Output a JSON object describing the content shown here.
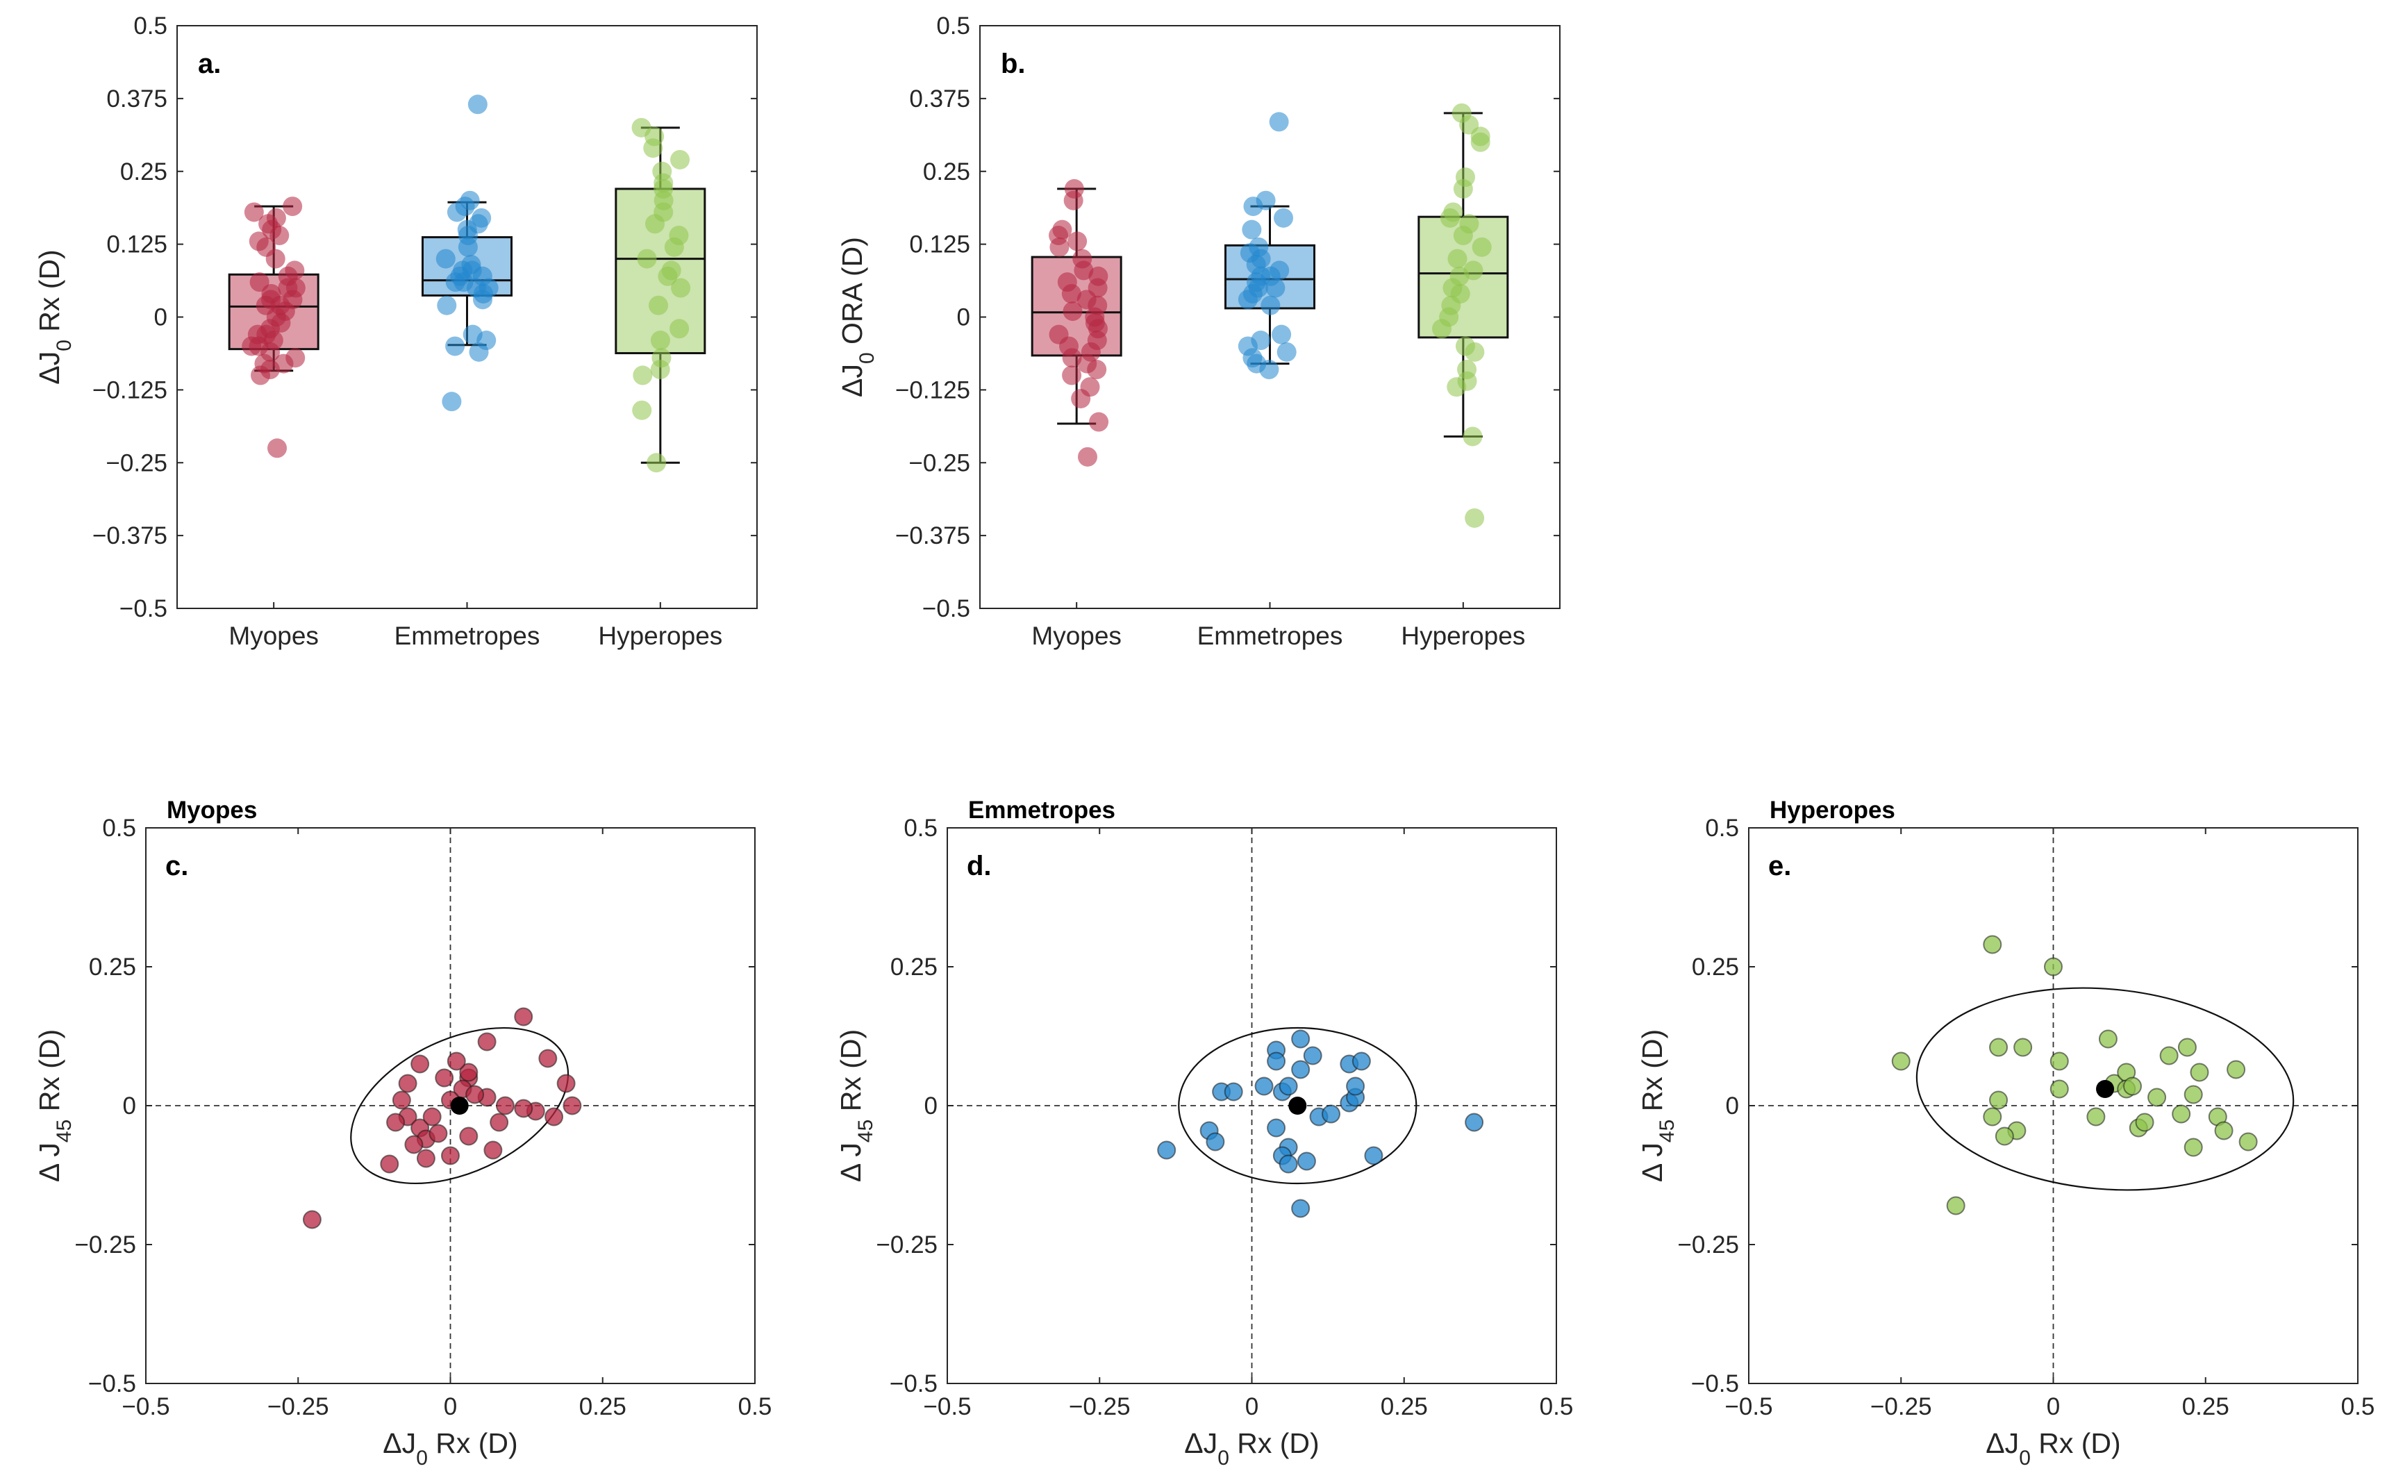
{
  "colors": {
    "myopes": "#b5243f",
    "emmetropes": "#2386ce",
    "hyperopes": "#8fc44c",
    "mean_marker": "#000000",
    "axis": "#262626"
  },
  "chart_data": [
    {
      "id": "a",
      "type": "box",
      "panel_label": "a.",
      "title": "",
      "ylabel_prefix": "ΔJ",
      "ylabel_sub": "0",
      "ylabel_suffix": " Rx (D)",
      "ylim": [
        -0.5,
        0.5
      ],
      "yticks": [
        0.5,
        0.375,
        0.25,
        0.125,
        0,
        -0.125,
        -0.25,
        -0.375,
        -0.5
      ],
      "yticklabels": [
        "0.5",
        "0.375",
        "0.25",
        "0.125",
        "0",
        "−0.125",
        "−0.25",
        "−0.375",
        "−0.5"
      ],
      "categories": [
        "Myopes",
        "Emmetropes",
        "Hyperopes"
      ],
      "boxes": [
        {
          "name": "Myopes",
          "q1": -0.055,
          "median": 0.018,
          "q3": 0.073,
          "whisker_low": -0.092,
          "whisker_high": 0.19,
          "points": [
            0.19,
            0.18,
            0.17,
            0.16,
            0.15,
            0.14,
            0.13,
            0.12,
            0.1,
            0.08,
            0.07,
            0.06,
            0.05,
            0.05,
            0.04,
            0.03,
            0.03,
            0.02,
            0.02,
            0.01,
            0.0,
            -0.01,
            -0.02,
            -0.03,
            -0.03,
            -0.04,
            -0.05,
            -0.05,
            -0.06,
            -0.07,
            -0.08,
            -0.08,
            -0.09,
            -0.1,
            -0.225
          ]
        },
        {
          "name": "Emmetropes",
          "q1": 0.037,
          "median": 0.063,
          "q3": 0.137,
          "whisker_low": -0.048,
          "whisker_high": 0.197,
          "points": [
            0.365,
            0.2,
            0.19,
            0.18,
            0.17,
            0.16,
            0.15,
            0.14,
            0.12,
            0.1,
            0.09,
            0.08,
            0.08,
            0.07,
            0.07,
            0.06,
            0.06,
            0.05,
            0.05,
            0.04,
            0.03,
            0.02,
            -0.03,
            -0.04,
            -0.05,
            -0.06,
            -0.145
          ]
        },
        {
          "name": "Hyperopes",
          "q1": -0.062,
          "median": 0.1,
          "q3": 0.22,
          "whisker_low": -0.25,
          "whisker_high": 0.325,
          "points": [
            0.325,
            0.31,
            0.29,
            0.27,
            0.25,
            0.23,
            0.22,
            0.2,
            0.18,
            0.16,
            0.14,
            0.12,
            0.1,
            0.08,
            0.07,
            0.05,
            0.02,
            -0.02,
            -0.04,
            -0.07,
            -0.09,
            -0.1,
            -0.16,
            -0.25
          ]
        }
      ]
    },
    {
      "id": "b",
      "type": "box",
      "panel_label": "b.",
      "title": "",
      "ylabel_prefix": "ΔJ",
      "ylabel_sub": "0",
      "ylabel_suffix": " ORA (D)",
      "ylim": [
        -0.5,
        0.5
      ],
      "yticks": [
        0.5,
        0.375,
        0.25,
        0.125,
        0,
        -0.125,
        -0.25,
        -0.375,
        -0.5
      ],
      "yticklabels": [
        "0.5",
        "0.375",
        "0.25",
        "0.125",
        "0",
        "−0.125",
        "−0.25",
        "−0.375",
        "−0.5"
      ],
      "categories": [
        "Myopes",
        "Emmetropes",
        "Hyperopes"
      ],
      "boxes": [
        {
          "name": "Myopes",
          "q1": -0.066,
          "median": 0.008,
          "q3": 0.103,
          "whisker_low": -0.183,
          "whisker_high": 0.22,
          "points": [
            0.22,
            0.2,
            0.15,
            0.14,
            0.13,
            0.12,
            0.1,
            0.08,
            0.07,
            0.06,
            0.05,
            0.04,
            0.03,
            0.02,
            0.01,
            0.0,
            -0.01,
            -0.02,
            -0.03,
            -0.04,
            -0.05,
            -0.06,
            -0.07,
            -0.08,
            -0.09,
            -0.1,
            -0.12,
            -0.14,
            -0.18,
            -0.24
          ]
        },
        {
          "name": "Emmetropes",
          "q1": 0.015,
          "median": 0.065,
          "q3": 0.123,
          "whisker_low": -0.08,
          "whisker_high": 0.19,
          "points": [
            0.335,
            0.2,
            0.19,
            0.17,
            0.15,
            0.12,
            0.11,
            0.1,
            0.09,
            0.08,
            0.07,
            0.07,
            0.06,
            0.05,
            0.05,
            0.04,
            0.03,
            0.02,
            -0.03,
            -0.04,
            -0.05,
            -0.06,
            -0.07,
            -0.08,
            -0.09
          ]
        },
        {
          "name": "Hyperopes",
          "q1": -0.035,
          "median": 0.075,
          "q3": 0.172,
          "whisker_low": -0.205,
          "whisker_high": 0.35,
          "points": [
            0.35,
            0.33,
            0.31,
            0.3,
            0.24,
            0.22,
            0.18,
            0.17,
            0.16,
            0.14,
            0.12,
            0.1,
            0.08,
            0.07,
            0.05,
            0.04,
            0.02,
            0.0,
            -0.02,
            -0.05,
            -0.06,
            -0.09,
            -0.11,
            -0.12,
            -0.205,
            -0.345
          ]
        }
      ]
    },
    {
      "id": "c",
      "type": "scatter",
      "panel_label": "c.",
      "title": "Myopes",
      "group": "myopes",
      "xlabel_prefix": "ΔJ",
      "xlabel_sub": "0",
      "xlabel_suffix": " Rx (D)",
      "ylabel_prefix": "Δ J",
      "ylabel_sub": "45",
      "ylabel_suffix": " Rx (D)",
      "xlim": [
        -0.5,
        0.5
      ],
      "ylim": [
        -0.5,
        0.5
      ],
      "xticks": [
        -0.5,
        -0.25,
        0,
        0.25,
        0.5
      ],
      "xticklabels": [
        "−0.5",
        "−0.25",
        "0",
        "0.25",
        "0.5"
      ],
      "yticks": [
        0.5,
        0.25,
        0,
        -0.25,
        -0.5
      ],
      "yticklabels": [
        "0.5",
        "0.25",
        "0",
        "−0.25",
        "−0.5"
      ],
      "mean": [
        0.015,
        0.0
      ],
      "ellipse": {
        "cx": 0.015,
        "cy": 0.0,
        "rx": 0.19,
        "ry": 0.12,
        "angle_deg": 25
      },
      "points": [
        [
          -0.227,
          -0.205
        ],
        [
          0.12,
          0.16
        ],
        [
          0.16,
          0.085
        ],
        [
          0.19,
          0.04
        ],
        [
          0.2,
          0.0
        ],
        [
          0.17,
          -0.02
        ],
        [
          0.14,
          -0.01
        ],
        [
          0.12,
          -0.005
        ],
        [
          0.08,
          -0.03
        ],
        [
          0.06,
          0.115
        ],
        [
          0.06,
          0.015
        ],
        [
          0.03,
          0.05
        ],
        [
          0.03,
          0.06
        ],
        [
          0.02,
          0.03
        ],
        [
          0.01,
          0.08
        ],
        [
          0.0,
          0.01
        ],
        [
          -0.01,
          0.05
        ],
        [
          -0.05,
          0.075
        ],
        [
          -0.07,
          0.04
        ],
        [
          -0.08,
          0.01
        ],
        [
          -0.07,
          -0.02
        ],
        [
          -0.05,
          -0.04
        ],
        [
          -0.04,
          -0.06
        ],
        [
          -0.03,
          -0.02
        ],
        [
          -0.02,
          -0.05
        ],
        [
          -0.06,
          -0.07
        ],
        [
          -0.09,
          -0.03
        ],
        [
          -0.1,
          -0.105
        ],
        [
          -0.04,
          -0.095
        ],
        [
          0.0,
          -0.09
        ],
        [
          0.03,
          -0.055
        ],
        [
          0.07,
          -0.08
        ],
        [
          0.09,
          0.0
        ],
        [
          0.04,
          0.02
        ]
      ]
    },
    {
      "id": "d",
      "type": "scatter",
      "panel_label": "d.",
      "title": "Emmetropes",
      "group": "emmetropes",
      "xlabel_prefix": "ΔJ",
      "xlabel_sub": "0",
      "xlabel_suffix": " Rx (D)",
      "ylabel_prefix": "Δ J",
      "ylabel_sub": "45",
      "ylabel_suffix": " Rx (D)",
      "xlim": [
        -0.5,
        0.5
      ],
      "ylim": [
        -0.5,
        0.5
      ],
      "xticks": [
        -0.5,
        -0.25,
        0,
        0.25,
        0.5
      ],
      "xticklabels": [
        "−0.5",
        "−0.25",
        "0",
        "0.25",
        "0.5"
      ],
      "yticks": [
        0.5,
        0.25,
        0,
        -0.25,
        -0.5
      ],
      "yticklabels": [
        "0.5",
        "0.25",
        "0",
        "−0.25",
        "−0.5"
      ],
      "mean": [
        0.075,
        0.0
      ],
      "ellipse": {
        "cx": 0.075,
        "cy": 0.0,
        "rx": 0.195,
        "ry": 0.14,
        "angle_deg": 0
      },
      "points": [
        [
          -0.14,
          -0.08
        ],
        [
          -0.07,
          -0.045
        ],
        [
          -0.06,
          -0.065
        ],
        [
          -0.05,
          0.025
        ],
        [
          -0.03,
          0.025
        ],
        [
          0.02,
          0.035
        ],
        [
          0.04,
          0.1
        ],
        [
          0.04,
          0.08
        ],
        [
          0.04,
          -0.04
        ],
        [
          0.05,
          0.025
        ],
        [
          0.06,
          0.035
        ],
        [
          0.06,
          -0.075
        ],
        [
          0.05,
          -0.09
        ],
        [
          0.06,
          -0.105
        ],
        [
          0.08,
          0.12
        ],
        [
          0.08,
          0.065
        ],
        [
          0.09,
          -0.1
        ],
        [
          0.1,
          0.09
        ],
        [
          0.11,
          -0.02
        ],
        [
          0.13,
          -0.015
        ],
        [
          0.16,
          0.005
        ],
        [
          0.16,
          0.075
        ],
        [
          0.17,
          0.015
        ],
        [
          0.17,
          0.035
        ],
        [
          0.18,
          0.08
        ],
        [
          0.2,
          -0.09
        ],
        [
          0.08,
          -0.185
        ],
        [
          0.365,
          -0.03
        ]
      ]
    },
    {
      "id": "e",
      "type": "scatter",
      "panel_label": "e.",
      "title": "Hyperopes",
      "group": "hyperopes",
      "xlabel_prefix": "ΔJ",
      "xlabel_sub": "0",
      "xlabel_suffix": " Rx (D)",
      "ylabel_prefix": "Δ J",
      "ylabel_sub": "45",
      "ylabel_suffix": " Rx (D)",
      "xlim": [
        -0.5,
        0.5
      ],
      "ylim": [
        -0.5,
        0.5
      ],
      "xticks": [
        -0.5,
        -0.25,
        0,
        0.25,
        0.5
      ],
      "xticklabels": [
        "−0.5",
        "−0.25",
        "0",
        "0.25",
        "0.5"
      ],
      "yticks": [
        0.5,
        0.25,
        0,
        -0.25,
        -0.5
      ],
      "yticklabels": [
        "0.5",
        "0.25",
        "0",
        "−0.25",
        "−0.5"
      ],
      "mean": [
        0.085,
        0.03
      ],
      "ellipse": {
        "cx": 0.085,
        "cy": 0.03,
        "rx": 0.31,
        "ry": 0.18,
        "angle_deg": -5
      },
      "points": [
        [
          -0.25,
          0.08
        ],
        [
          -0.16,
          -0.18
        ],
        [
          -0.1,
          0.29
        ],
        [
          -0.09,
          0.105
        ],
        [
          -0.06,
          -0.045
        ],
        [
          -0.05,
          0.105
        ],
        [
          -0.09,
          0.01
        ],
        [
          -0.1,
          -0.02
        ],
        [
          -0.08,
          -0.055
        ],
        [
          0.0,
          0.25
        ],
        [
          0.01,
          0.08
        ],
        [
          0.01,
          0.03
        ],
        [
          0.07,
          -0.02
        ],
        [
          0.09,
          0.12
        ],
        [
          0.1,
          0.04
        ],
        [
          0.12,
          0.06
        ],
        [
          0.12,
          0.03
        ],
        [
          0.13,
          0.035
        ],
        [
          0.14,
          -0.04
        ],
        [
          0.15,
          -0.03
        ],
        [
          0.17,
          0.015
        ],
        [
          0.19,
          0.09
        ],
        [
          0.21,
          -0.015
        ],
        [
          0.22,
          0.105
        ],
        [
          0.23,
          0.02
        ],
        [
          0.23,
          -0.075
        ],
        [
          0.24,
          0.06
        ],
        [
          0.27,
          -0.02
        ],
        [
          0.28,
          -0.045
        ],
        [
          0.3,
          0.065
        ],
        [
          0.32,
          -0.065
        ]
      ]
    }
  ]
}
